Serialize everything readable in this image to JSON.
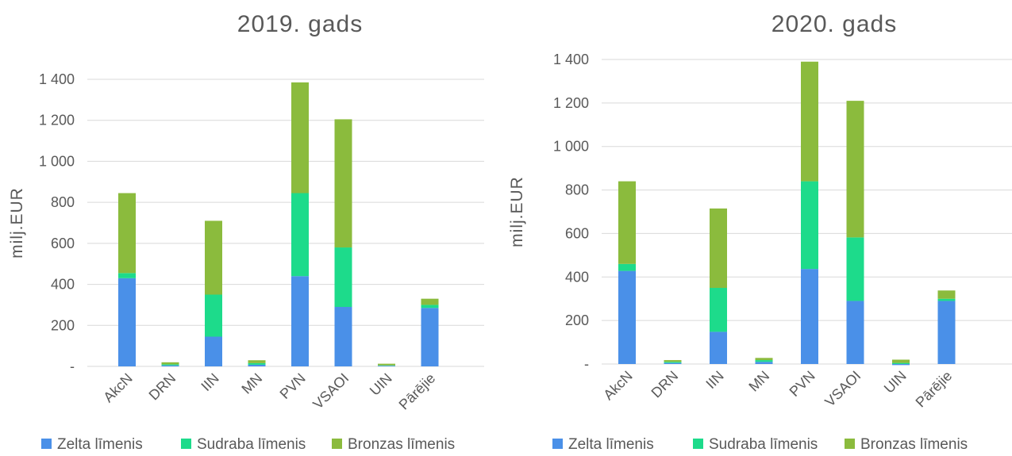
{
  "chart_data": [
    {
      "type": "bar",
      "stacked": true,
      "title": "2019. gads",
      "ylabel": "milj.EUR",
      "xlabel": "",
      "ylim": [
        0,
        1400
      ],
      "yticks": [
        0,
        200,
        400,
        600,
        800,
        1000,
        1200,
        1400
      ],
      "ytick_labels": [
        "-",
        "200",
        "400",
        "600",
        "800",
        "1 000",
        "1 200",
        "1 400"
      ],
      "grid": true,
      "legend_position": "bottom",
      "categories": [
        "AkcN",
        "DRN",
        "IIN",
        "MN",
        "PVN",
        "VSAOI",
        "UIN",
        "Pārējie"
      ],
      "series": [
        {
          "name": "Zelta līmenis",
          "color": "#4a90e8",
          "values": [
            430,
            5,
            145,
            8,
            440,
            290,
            3,
            285
          ]
        },
        {
          "name": "Sudraba līmenis",
          "color": "#1ddb8b",
          "values": [
            25,
            5,
            205,
            8,
            405,
            290,
            2,
            15
          ]
        },
        {
          "name": "Bronzas līmenis",
          "color": "#8bbb3d",
          "values": [
            390,
            10,
            360,
            14,
            540,
            625,
            8,
            30
          ]
        }
      ]
    },
    {
      "type": "bar",
      "stacked": true,
      "title": "2020. gads",
      "ylabel": "milj.EUR",
      "xlabel": "",
      "ylim": [
        0,
        1400
      ],
      "yticks": [
        0,
        200,
        400,
        600,
        800,
        1000,
        1200,
        1400
      ],
      "ytick_labels": [
        "-",
        "200",
        "400",
        "600",
        "800",
        "1 000",
        "1 200",
        "1 400"
      ],
      "grid": true,
      "legend_position": "bottom",
      "categories": [
        "AkcN",
        "DRN",
        "IIN",
        "MN",
        "PVN",
        "VSAOI",
        "UIN",
        "Pārējie"
      ],
      "series": [
        {
          "name": "Zelta līmenis",
          "color": "#4a90e8",
          "values": [
            428,
            5,
            148,
            10,
            437,
            290,
            -5,
            290
          ]
        },
        {
          "name": "Sudraba līmenis",
          "color": "#1ddb8b",
          "values": [
            32,
            5,
            202,
            8,
            403,
            292,
            5,
            10
          ]
        },
        {
          "name": "Bronzas līmenis",
          "color": "#8bbb3d",
          "values": [
            380,
            8,
            365,
            10,
            550,
            628,
            15,
            38
          ]
        }
      ]
    }
  ]
}
